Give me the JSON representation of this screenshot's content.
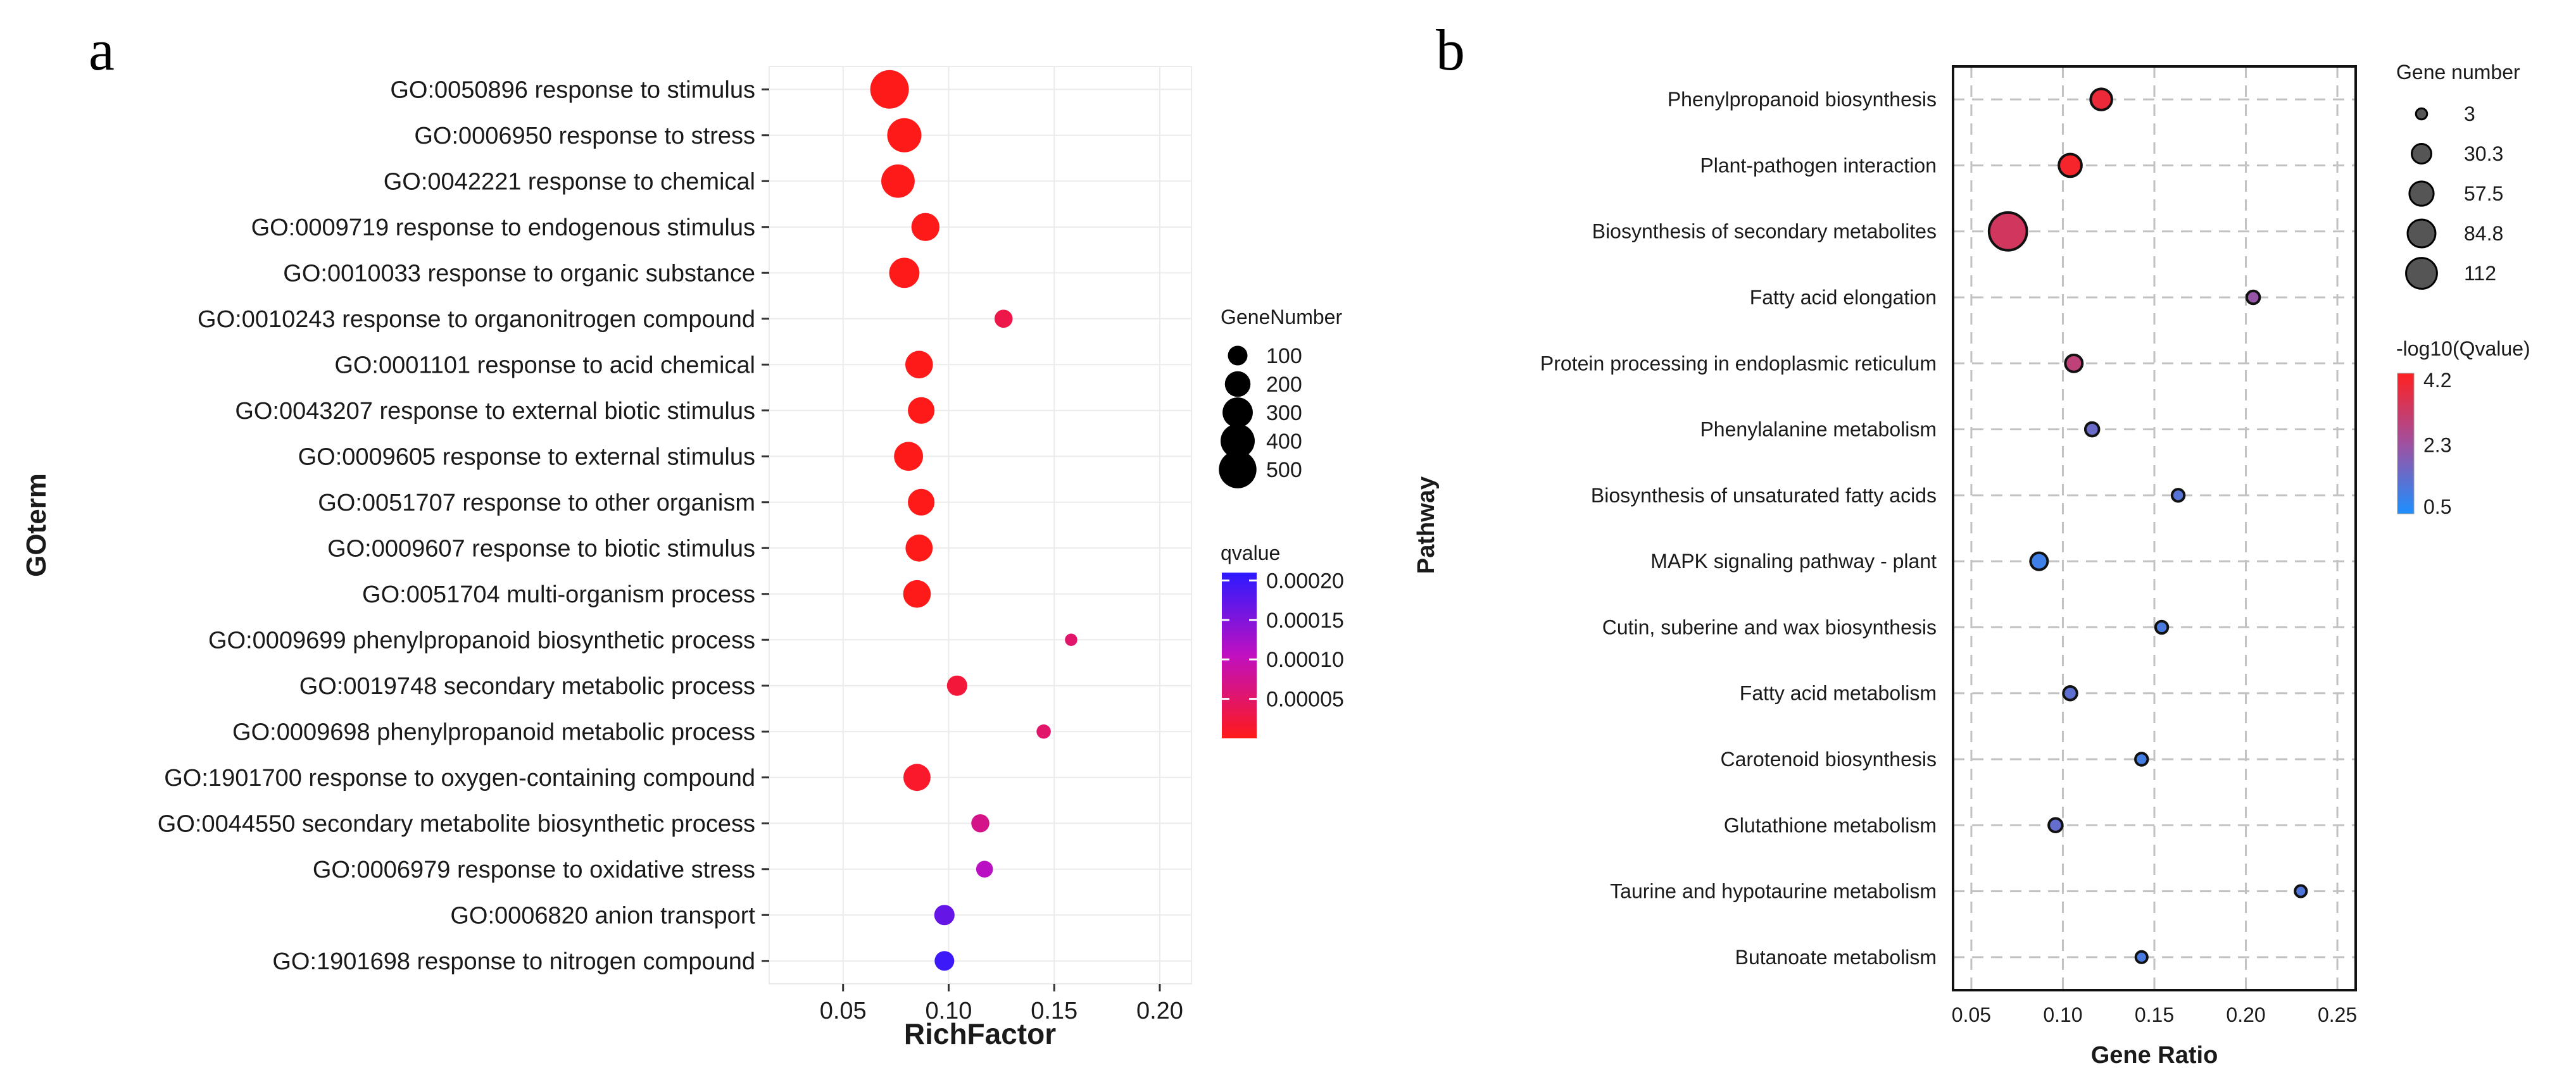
{
  "chart_data": [
    {
      "panel": "a",
      "type": "scatter",
      "xlabel": "RichFactor",
      "ylabel": "GOterm",
      "xlim": [
        0.015,
        0.215
      ],
      "xticks": [
        "0.05",
        "0.10",
        "0.15",
        "0.20"
      ],
      "xtick_values": [
        0.05,
        0.1,
        0.15,
        0.2
      ],
      "categories": [
        "GO:0050896 response to stimulus",
        "GO:0006950 response to stress",
        "GO:0042221 response to chemical",
        "GO:0009719 response to endogenous stimulus",
        "GO:0010033 response to organic substance",
        "GO:0010243 response to organonitrogen compound",
        "GO:0001101 response to acid chemical",
        "GO:0043207 response to external biotic stimulus",
        "GO:0009605 response to external stimulus",
        "GO:0051707 response to other organism",
        "GO:0009607 response to biotic stimulus",
        "GO:0051704 multi-organism process",
        "GO:0009699 phenylpropanoid biosynthetic process",
        "GO:0019748 secondary metabolic process",
        "GO:0009698 phenylpropanoid metabolic process",
        "GO:1901700 response to oxygen-containing compound",
        "GO:0044550 secondary metabolite biosynthetic process",
        "GO:0006979 response to oxidative stress",
        "GO:0006820 anion transport",
        "GO:1901698 response to nitrogen compound"
      ],
      "x": [
        0.072,
        0.079,
        0.076,
        0.089,
        0.079,
        0.126,
        0.086,
        0.087,
        0.081,
        0.087,
        0.086,
        0.085,
        0.158,
        0.104,
        0.145,
        0.085,
        0.115,
        0.117,
        0.098,
        0.098
      ],
      "size": [
        530,
        400,
        380,
        250,
        300,
        80,
        240,
        220,
        270,
        220,
        230,
        240,
        25,
        110,
        40,
        230,
        80,
        65,
        110,
        100
      ],
      "qvalue": [
        0.0,
        0.0,
        0.0,
        0.0,
        0.0,
        3e-05,
        0.0,
        0.0,
        0.0,
        0.0,
        0.0,
        0.0,
        5e-05,
        2e-05,
        5e-05,
        1e-05,
        7e-05,
        0.00011,
        0.00017,
        0.0002
      ],
      "size_legend": {
        "title": "GeneNumber",
        "values": [
          100,
          200,
          300,
          400,
          500
        ]
      },
      "color_legend": {
        "title": "qvalue",
        "labels": [
          "0.00020",
          "0.00015",
          "0.00010",
          "0.00005"
        ],
        "values": [
          0.0002,
          0.00015,
          0.0001,
          5e-05
        ],
        "range": [
          0.0,
          0.00021
        ],
        "colors": [
          "#ff1a1a",
          "#2d1aff"
        ]
      }
    },
    {
      "panel": "b",
      "type": "scatter",
      "xlabel": "Gene Ratio",
      "ylabel": "Pathway",
      "xlim": [
        0.04,
        0.26
      ],
      "xticks": [
        "0.05",
        "0.10",
        "0.15",
        "0.20",
        "0.25"
      ],
      "xtick_values": [
        0.05,
        0.1,
        0.15,
        0.2,
        0.25
      ],
      "categories": [
        "Phenylpropanoid biosynthesis",
        "Plant-pathogen interaction",
        "Biosynthesis of secondary metabolites",
        "Fatty acid elongation",
        "Protein processing in endoplasmic reticulum",
        "Phenylalanine metabolism",
        "Biosynthesis of unsaturated fatty acids",
        "MAPK signaling pathway - plant",
        "Cutin, suberine and wax biosynthesis",
        "Fatty acid metabolism",
        "Carotenoid biosynthesis",
        "Glutathione metabolism",
        "Taurine and hypotaurine metabolism",
        "Butanoate metabolism"
      ],
      "x": [
        0.121,
        0.104,
        0.07,
        0.204,
        0.106,
        0.116,
        0.163,
        0.087,
        0.154,
        0.104,
        0.143,
        0.096,
        0.23,
        0.143
      ],
      "size": [
        25,
        30,
        112,
        5,
        13,
        6,
        4,
        13,
        4,
        6,
        4,
        6,
        3,
        3
      ],
      "neg_log10_q": [
        4.0,
        4.2,
        3.4,
        2.2,
        3.0,
        1.5,
        1.2,
        0.8,
        1.0,
        1.3,
        0.9,
        1.4,
        1.1,
        1.0
      ],
      "size_legend": {
        "title": "Gene number",
        "values": [
          3,
          30.3,
          57.5,
          84.8,
          112
        ],
        "labels": [
          "3",
          "30.3",
          "57.5",
          "84.8",
          "112"
        ]
      },
      "color_legend": {
        "title": "-log10(Qvalue)",
        "labels": [
          "4.2",
          "2.3",
          "0.5"
        ],
        "values": [
          4.2,
          2.3,
          0.5
        ],
        "range": [
          0.3,
          4.4
        ],
        "colors": [
          "#ff2020",
          "#1e8fff"
        ]
      }
    }
  ],
  "panel_letters": [
    "a",
    "b"
  ]
}
